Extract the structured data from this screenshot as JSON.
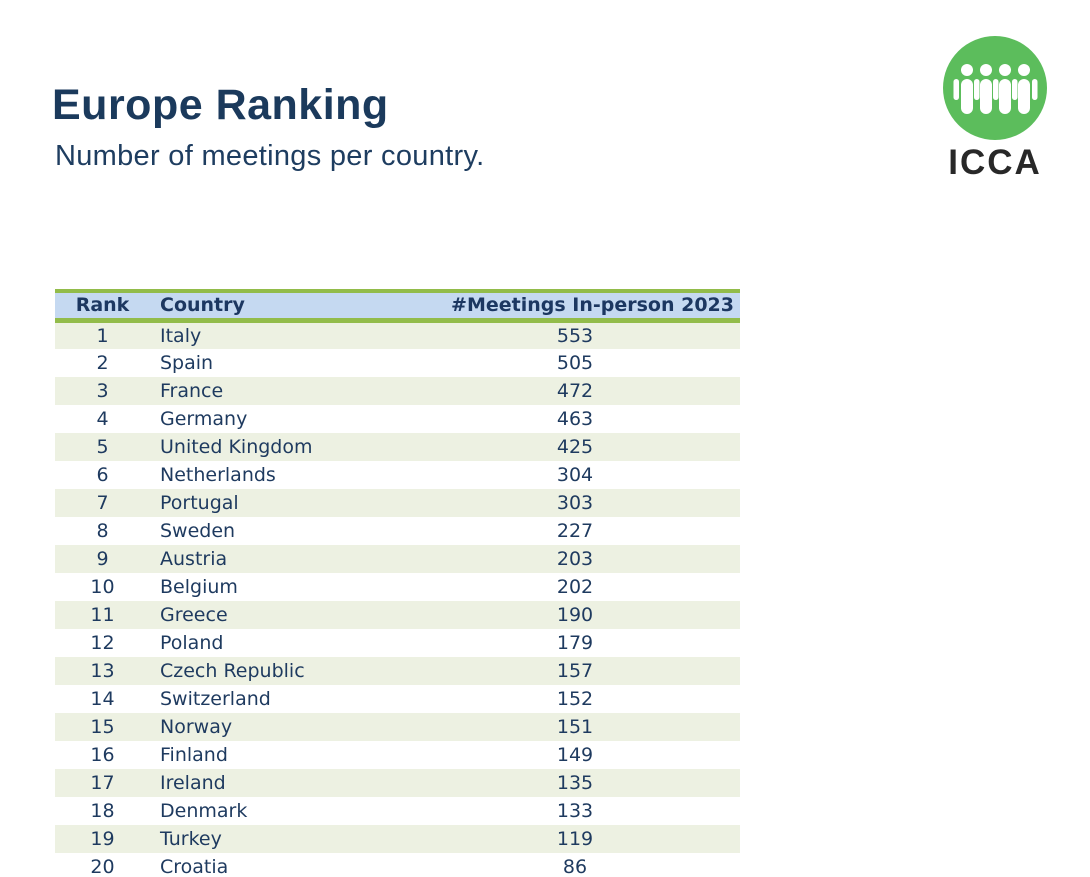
{
  "page": {
    "title": "Europe Ranking",
    "subtitle": "Number of meetings per country."
  },
  "logo": {
    "text": "ICCA",
    "icon": "people-group-icon",
    "circle_color": "#5cbd5c",
    "figure_color": "#ffffff",
    "text_color": "#282828"
  },
  "colors": {
    "title_navy": "#1b3a5c",
    "table_text_navy": "#1e3a5f",
    "header_blue": "#c5d9f1",
    "accent_green": "#92bc4a",
    "row_green": "#edf1e2",
    "row_white": "#ffffff"
  },
  "table": {
    "headers": [
      "Rank",
      "Country",
      "#Meetings In-person 2023"
    ],
    "rows": [
      {
        "rank": "1",
        "country": "Italy",
        "meetings": "553"
      },
      {
        "rank": "2",
        "country": "Spain",
        "meetings": "505"
      },
      {
        "rank": "3",
        "country": "France",
        "meetings": "472"
      },
      {
        "rank": "4",
        "country": "Germany",
        "meetings": "463"
      },
      {
        "rank": "5",
        "country": "United Kingdom",
        "meetings": "425"
      },
      {
        "rank": "6",
        "country": "Netherlands",
        "meetings": "304"
      },
      {
        "rank": "7",
        "country": "Portugal",
        "meetings": "303"
      },
      {
        "rank": "8",
        "country": "Sweden",
        "meetings": "227"
      },
      {
        "rank": "9",
        "country": "Austria",
        "meetings": "203"
      },
      {
        "rank": "10",
        "country": "Belgium",
        "meetings": "202"
      },
      {
        "rank": "11",
        "country": "Greece",
        "meetings": "190"
      },
      {
        "rank": "12",
        "country": "Poland",
        "meetings": "179"
      },
      {
        "rank": "13",
        "country": "Czech Republic",
        "meetings": "157"
      },
      {
        "rank": "14",
        "country": "Switzerland",
        "meetings": "152"
      },
      {
        "rank": "15",
        "country": "Norway",
        "meetings": "151"
      },
      {
        "rank": "16",
        "country": "Finland",
        "meetings": "149"
      },
      {
        "rank": "17",
        "country": "Ireland",
        "meetings": "135"
      },
      {
        "rank": "18",
        "country": "Denmark",
        "meetings": "133"
      },
      {
        "rank": "19",
        "country": "Turkey",
        "meetings": "119"
      },
      {
        "rank": "20",
        "country": "Croatia",
        "meetings": "86"
      }
    ]
  }
}
